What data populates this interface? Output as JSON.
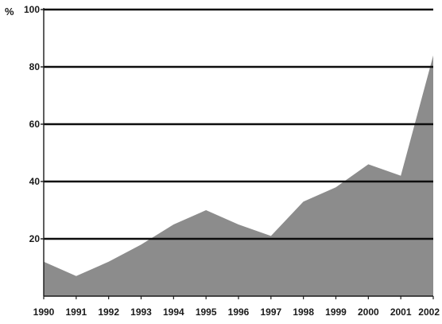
{
  "chart_data": {
    "type": "area",
    "ylabel": "%",
    "x": [
      "1990",
      "1991",
      "1992",
      "1993",
      "1994",
      "1995",
      "1996",
      "1997",
      "1998",
      "1999",
      "2000",
      "2001",
      "2002"
    ],
    "series": [
      {
        "values": [
          12,
          7,
          12,
          18,
          25,
          30,
          25,
          21,
          33,
          38,
          46,
          42,
          84
        ]
      }
    ],
    "ylim": [
      0,
      100
    ],
    "yticks": [
      "20",
      "40",
      "60",
      "80",
      "100"
    ],
    "grid": true,
    "colors": {
      "area": "#8c8c8c",
      "grid": "#0d0d0d",
      "axis": "#1a1a1a",
      "text": "#1a1a1a"
    }
  }
}
